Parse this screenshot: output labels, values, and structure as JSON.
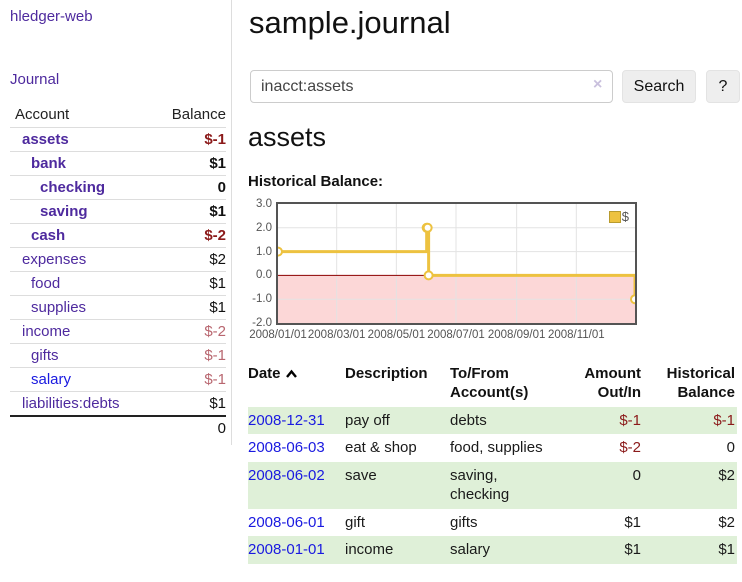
{
  "app": {
    "title": "hledger-web"
  },
  "sidebar": {
    "journal_link": "Journal",
    "accounts_header": {
      "account": "Account",
      "balance": "Balance"
    },
    "accounts": [
      {
        "name": "assets",
        "indent": 1,
        "bold": true,
        "balance": "$-1",
        "neg": "strong"
      },
      {
        "name": "bank",
        "indent": 2,
        "bold": true,
        "balance": "$1",
        "neg": "none"
      },
      {
        "name": "checking",
        "indent": 3,
        "bold": true,
        "balance": "0",
        "neg": "none"
      },
      {
        "name": "saving",
        "indent": 3,
        "bold": true,
        "balance": "$1",
        "neg": "none"
      },
      {
        "name": "cash",
        "indent": 2,
        "bold": true,
        "balance": "$-2",
        "neg": "strong"
      },
      {
        "name": "expenses",
        "indent": 1,
        "bold": false,
        "balance": "$2",
        "neg": "none"
      },
      {
        "name": "food",
        "indent": 2,
        "bold": false,
        "balance": "$1",
        "neg": "none"
      },
      {
        "name": "supplies",
        "indent": 2,
        "bold": false,
        "balance": "$1",
        "neg": "none"
      },
      {
        "name": "income",
        "indent": 1,
        "bold": false,
        "balance": "$-2",
        "neg": "soft"
      },
      {
        "name": "gifts",
        "indent": 2,
        "bold": false,
        "balance": "$-1",
        "neg": "soft"
      },
      {
        "name": "salary",
        "indent": 2,
        "bold": false,
        "balance": "$-1",
        "neg": "soft",
        "blue": true
      },
      {
        "name": "liabilities:debts",
        "indent": 1,
        "bold": false,
        "balance": "$1",
        "neg": "none"
      }
    ],
    "total": "0"
  },
  "header": {
    "title": "sample.journal"
  },
  "search": {
    "value": "inacct:assets",
    "clear_icon": "×",
    "button_label": "Search",
    "help_label": "?"
  },
  "main": {
    "account_heading": "assets",
    "chart_label": "Historical Balance:"
  },
  "chart_data": {
    "type": "line",
    "step": true,
    "title": "Historical Balance",
    "series_label": "$",
    "points": [
      {
        "date": "2008-01-01",
        "day": 0,
        "value": 1
      },
      {
        "date": "2008-06-01",
        "day": 152,
        "value": 2
      },
      {
        "date": "2008-06-02",
        "day": 153,
        "value": 2
      },
      {
        "date": "2008-06-03",
        "day": 154,
        "value": 0
      },
      {
        "date": "2008-12-31",
        "day": 365,
        "value": -1
      }
    ],
    "x_max_day": 365,
    "ylim": [
      -2,
      3
    ],
    "y_ticks": [
      {
        "v": 3,
        "label": "3.0"
      },
      {
        "v": 2,
        "label": "2.0"
      },
      {
        "v": 1,
        "label": "1.0"
      },
      {
        "v": 0,
        "label": "0.0"
      },
      {
        "v": -1,
        "label": "-1.0"
      },
      {
        "v": -2,
        "label": "-2.0"
      }
    ],
    "x_ticks": [
      {
        "day": 0,
        "label": "2008/01/01"
      },
      {
        "day": 60,
        "label": "2008/03/01"
      },
      {
        "day": 121,
        "label": "2008/05/01"
      },
      {
        "day": 182,
        "label": "2008/07/01"
      },
      {
        "day": 244,
        "label": "2008/09/01"
      },
      {
        "day": 305,
        "label": "2008/11/01"
      }
    ],
    "negative_region_shaded": true,
    "legend_position": "top-right",
    "grid": true
  },
  "register_table": {
    "headers": {
      "date": "Date",
      "description": "Description",
      "tofrom": "To/From Account(s)",
      "amount": "Amount Out/In",
      "balance": "Historical Balance"
    },
    "rows": [
      {
        "date": "2008-12-31",
        "description": "pay off",
        "accounts": "debts",
        "amount": "$-1",
        "amount_neg": true,
        "balance": "$-1",
        "balance_neg": true,
        "shaded": true
      },
      {
        "date": "2008-06-03",
        "description": "eat & shop",
        "accounts": "food, supplies",
        "amount": "$-2",
        "amount_neg": true,
        "balance": "0",
        "balance_neg": false,
        "shaded": false
      },
      {
        "date": "2008-06-02",
        "description": "save",
        "accounts": "saving, checking",
        "amount": "0",
        "amount_neg": false,
        "balance": "$2",
        "balance_neg": false,
        "shaded": true
      },
      {
        "date": "2008-06-01",
        "description": "gift",
        "accounts": "gifts",
        "amount": "$1",
        "amount_neg": false,
        "balance": "$2",
        "balance_neg": false,
        "shaded": false
      },
      {
        "date": "2008-01-01",
        "description": "income",
        "accounts": "salary",
        "amount": "$1",
        "amount_neg": false,
        "balance": "$1",
        "balance_neg": false,
        "shaded": true
      }
    ]
  },
  "colors": {
    "link_purple": "#4e2a9e",
    "link_blue": "#1a1ae0",
    "neg_strong": "#8b1a1a",
    "neg_soft": "#b8666f",
    "row_green": "#dff0d8",
    "chart_line": "#edc240",
    "negative_region": "#fcd7d7",
    "zero_line": "#8b0000",
    "grid_line": "#e3e3e3",
    "chart_border": "#545454",
    "button_bg": "#eeeeee",
    "divider": "#dddddd"
  }
}
